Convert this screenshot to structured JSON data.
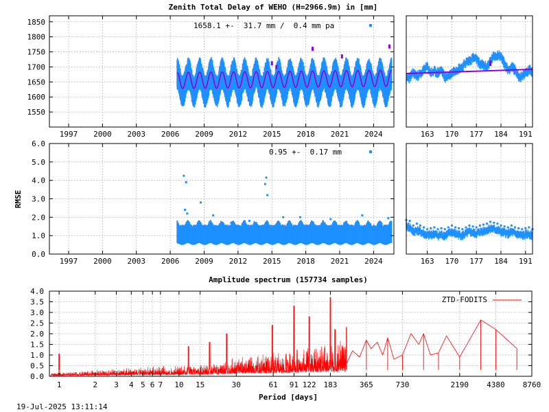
{
  "title": "Zenith Total Delay of WEHO (H=2966.9m) in [mm]",
  "timestamp": "19-Jul-2025 13:11:14",
  "colors": {
    "obs": "#1e90ff",
    "model": "#9400d3",
    "spectrum": "#ff0000",
    "grid": "#bbbbbb"
  },
  "chart_data": [
    {
      "id": "ztd_main",
      "type": "scatter",
      "annotation": "1658.1 +-  31.7 mm /  0.4 mm pa",
      "ylim": [
        1500,
        1870
      ],
      "yticks": [
        1550,
        1600,
        1650,
        1700,
        1750,
        1800,
        1850
      ],
      "xlim": [
        1995.3,
        2025.8
      ],
      "xticks": [
        1997,
        2000,
        2003,
        2006,
        2009,
        2012,
        2015,
        2018,
        2021,
        2024
      ],
      "data_start": 2006.6,
      "data_end": 2025.6,
      "mean": 1658.1,
      "seasonal_amplitude": 31.7,
      "trend_per_year": 0.4,
      "model_amplitude": 31.7,
      "scatter_lo": 1585,
      "scatter_hi": 1735,
      "series": [
        {
          "x": [
            2006.6,
            2009,
            2012,
            2015,
            2018,
            2021,
            2024,
            2025.6
          ],
          "lo": [
            1595,
            1600,
            1600,
            1585,
            1590,
            1595,
            1590,
            1590
          ],
          "hi": [
            1725,
            1735,
            1740,
            1740,
            1745,
            1740,
            1740,
            1745
          ]
        }
      ]
    },
    {
      "id": "ztd_recent",
      "type": "scatter",
      "ylim": [
        1500,
        1870
      ],
      "xlim": [
        157,
        193
      ],
      "xticks": [
        163,
        170,
        177,
        184,
        191
      ],
      "points": [
        [
          157,
          1660
        ],
        [
          158,
          1665
        ],
        [
          159,
          1680
        ],
        [
          160,
          1670
        ],
        [
          161,
          1675
        ],
        [
          162,
          1690
        ],
        [
          163,
          1700
        ],
        [
          164,
          1680
        ],
        [
          165,
          1685
        ],
        [
          166,
          1680
        ],
        [
          167,
          1690
        ],
        [
          168,
          1665
        ],
        [
          169,
          1670
        ],
        [
          170,
          1680
        ],
        [
          171,
          1690
        ],
        [
          172,
          1695
        ],
        [
          173,
          1700
        ],
        [
          174,
          1715
        ],
        [
          175,
          1720
        ],
        [
          176,
          1730
        ],
        [
          177,
          1725
        ],
        [
          178,
          1710
        ],
        [
          179,
          1705
        ],
        [
          180,
          1700
        ],
        [
          181,
          1720
        ],
        [
          182,
          1735
        ],
        [
          183,
          1740
        ],
        [
          184,
          1735
        ],
        [
          185,
          1710
        ],
        [
          186,
          1690
        ],
        [
          187,
          1700
        ],
        [
          188,
          1690
        ],
        [
          189,
          1670
        ],
        [
          190,
          1665
        ],
        [
          191,
          1680
        ],
        [
          192,
          1690
        ],
        [
          193,
          1685
        ]
      ],
      "model_line": [
        [
          157,
          1678
        ],
        [
          193,
          1692
        ]
      ]
    },
    {
      "id": "rmse_main",
      "type": "scatter",
      "ylabel": "RMSE",
      "annotation": "0.95 +-  0.17 mm",
      "ylim": [
        0,
        6
      ],
      "yticks": [
        0.0,
        1.0,
        2.0,
        3.0,
        4.0,
        5.0,
        6.0
      ],
      "xlim": [
        1995.3,
        2025.8
      ],
      "xticks": [
        1997,
        2000,
        2003,
        2006,
        2009,
        2012,
        2015,
        2018,
        2021,
        2024
      ],
      "data_start": 2006.6,
      "data_end": 2025.6,
      "band_lo": 0.55,
      "band_hi": 1.45,
      "outliers": [
        [
          2007.2,
          4.25
        ],
        [
          2007.4,
          3.9
        ],
        [
          2007.3,
          2.4
        ],
        [
          2007.5,
          2.2
        ],
        [
          2008.7,
          2.8
        ],
        [
          2014.5,
          4.15
        ],
        [
          2014.4,
          3.8
        ],
        [
          2014.6,
          3.2
        ],
        [
          2016.0,
          2.0
        ],
        [
          2017.5,
          2.0
        ],
        [
          2020.2,
          1.9
        ],
        [
          2023.0,
          2.1
        ],
        [
          2025.3,
          1.95
        ],
        [
          2009.8,
          2.1
        ],
        [
          2011.4,
          1.7
        ],
        [
          2013.0,
          1.8
        ]
      ]
    },
    {
      "id": "rmse_recent",
      "type": "scatter",
      "ylim": [
        0,
        6
      ],
      "xlim": [
        157,
        193
      ],
      "xticks": [
        163,
        170,
        177,
        184,
        191
      ],
      "points": [
        [
          157,
          1.5
        ],
        [
          158,
          1.45
        ],
        [
          159,
          1.2
        ],
        [
          160,
          1.3
        ],
        [
          161,
          1.2
        ],
        [
          162,
          1.1
        ],
        [
          163,
          1.0
        ],
        [
          164,
          1.05
        ],
        [
          165,
          1.1
        ],
        [
          166,
          1.0
        ],
        [
          167,
          1.05
        ],
        [
          168,
          1.0
        ],
        [
          169,
          1.1
        ],
        [
          170,
          1.2
        ],
        [
          171,
          1.1
        ],
        [
          172,
          1.05
        ],
        [
          173,
          1.0
        ],
        [
          174,
          1.1
        ],
        [
          175,
          1.2
        ],
        [
          176,
          1.15
        ],
        [
          177,
          1.1
        ],
        [
          178,
          1.2
        ],
        [
          179,
          1.25
        ],
        [
          180,
          1.3
        ],
        [
          181,
          1.4
        ],
        [
          182,
          1.35
        ],
        [
          183,
          1.3
        ],
        [
          184,
          1.2
        ],
        [
          185,
          1.15
        ],
        [
          186,
          1.1
        ],
        [
          187,
          1.2
        ],
        [
          188,
          1.1
        ],
        [
          189,
          1.05
        ],
        [
          190,
          1.0
        ],
        [
          191,
          1.05
        ],
        [
          192,
          1.1
        ],
        [
          193,
          1.0
        ]
      ]
    },
    {
      "id": "spectrum",
      "type": "line",
      "title": "Amplitude spectrum (157734 samples)",
      "xlabel": "Period [days]",
      "legend": "ZTD-FODITS",
      "legend_position": "top-right",
      "x_scale": "log",
      "xlim": [
        0.83,
        8760
      ],
      "ylim": [
        0,
        4
      ],
      "yticks": [
        0.0,
        0.5,
        1.0,
        1.5,
        2.0,
        2.5,
        3.0,
        3.5,
        4.0
      ],
      "xticks": [
        1,
        2,
        3,
        4,
        5,
        6,
        7,
        10,
        15,
        30,
        61,
        91,
        122,
        183,
        365,
        730,
        2190,
        4380,
        8760
      ],
      "xtick_labels": [
        "1",
        "2",
        "3",
        "4",
        "5",
        "6",
        "7",
        "10",
        "15",
        "30",
        "61",
        "91",
        "122",
        "183",
        "365",
        "730",
        "2190",
        "4380",
        "8760"
      ],
      "peaks": [
        [
          1.0,
          1.05
        ],
        [
          12,
          1.4
        ],
        [
          18,
          1.6
        ],
        [
          25,
          2.0
        ],
        [
          60,
          2.4
        ],
        [
          91,
          3.3
        ],
        [
          122,
          2.8
        ],
        [
          183,
          3.7
        ],
        [
          200,
          2.2
        ],
        [
          250,
          2.3
        ],
        [
          365,
          1.7
        ],
        [
          550,
          1.8
        ],
        [
          730,
          1.0
        ],
        [
          1095,
          2.0
        ],
        [
          1460,
          1.1
        ],
        [
          2190,
          0.9
        ],
        [
          3285,
          2.65
        ],
        [
          4380,
          2.2
        ],
        [
          6570,
          1.3
        ]
      ],
      "tail": [
        [
          250,
          0.6
        ],
        [
          280,
          1.2
        ],
        [
          320,
          0.9
        ],
        [
          365,
          1.7
        ],
        [
          400,
          1.3
        ],
        [
          450,
          1.6
        ],
        [
          500,
          1.0
        ],
        [
          550,
          1.8
        ],
        [
          620,
          0.8
        ],
        [
          730,
          1.0
        ],
        [
          860,
          2.0
        ],
        [
          1000,
          1.5
        ],
        [
          1095,
          2.0
        ],
        [
          1250,
          1.0
        ],
        [
          1460,
          1.1
        ],
        [
          1700,
          1.9
        ],
        [
          2190,
          0.9
        ],
        [
          2700,
          1.8
        ],
        [
          3285,
          2.65
        ],
        [
          4380,
          2.2
        ],
        [
          5500,
          1.7
        ],
        [
          6570,
          1.3
        ]
      ]
    }
  ]
}
